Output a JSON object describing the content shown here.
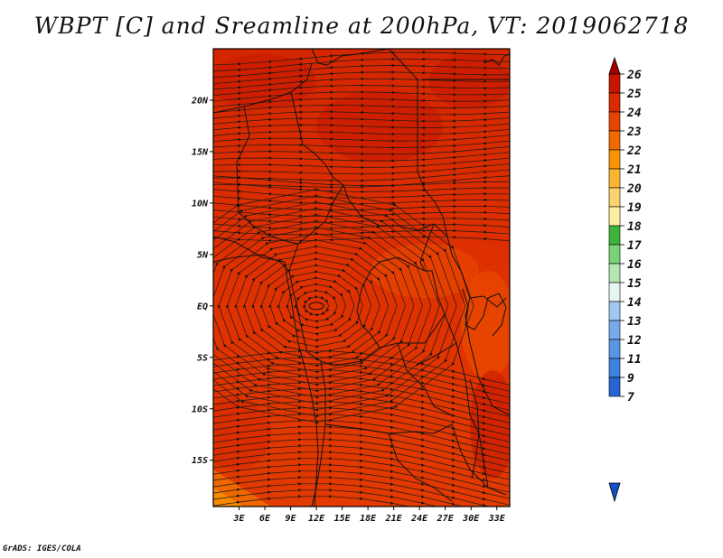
{
  "title": "WBPT [C] and Sreamline at 200hPa, VT: 2019062718",
  "footer": "GrADS: IGES/COLA",
  "map": {
    "lat_labels": [
      "20N",
      "15N",
      "10N",
      "5N",
      "EQ",
      "5S",
      "10S",
      "15S"
    ],
    "lat_values": [
      20,
      15,
      10,
      5,
      0,
      -5,
      -10,
      -15
    ],
    "lon_labels": [
      "3E",
      "6E",
      "9E",
      "12E",
      "15E",
      "18E",
      "21E",
      "24E",
      "27E",
      "30E",
      "33E"
    ],
    "lon_values": [
      3,
      6,
      9,
      12,
      15,
      18,
      21,
      24,
      27,
      30,
      33
    ],
    "lon_range": [
      0,
      34.5
    ],
    "lat_range": [
      -19.5,
      25
    ],
    "cyclone_center": {
      "lon": 12,
      "lat": 0
    }
  },
  "colorbar": {
    "labels": [
      "26",
      "25",
      "24",
      "23",
      "22",
      "21",
      "20",
      "19",
      "18",
      "17",
      "16",
      "15",
      "14",
      "13",
      "12",
      "11",
      "9",
      "7"
    ],
    "colors": [
      "#a50000",
      "#c81400",
      "#dc2a00",
      "#e84400",
      "#f06a00",
      "#f89400",
      "#fab432",
      "#fcd26e",
      "#fcf0a0",
      "#3cb43c",
      "#78d278",
      "#b4e6b4",
      "#e6f5f0",
      "#a0c8f0",
      "#78aaeb",
      "#5a96e6",
      "#3c82e1",
      "#2864d2",
      "#1450c8"
    ]
  }
}
